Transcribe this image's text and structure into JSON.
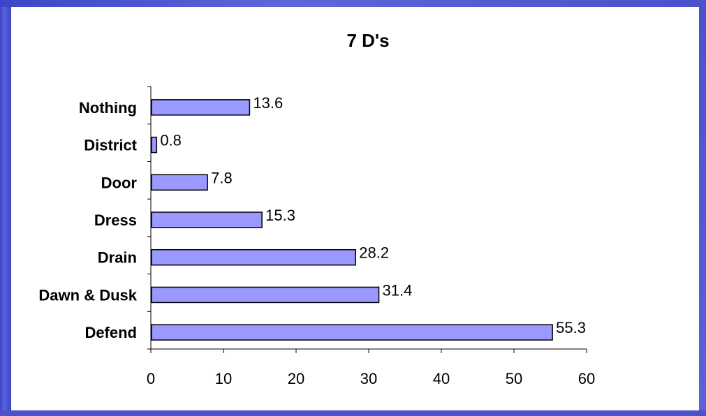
{
  "chart_data": {
    "type": "bar",
    "orientation": "horizontal",
    "title": "7 D's",
    "categories": [
      "Nothing",
      "District",
      "Door",
      "Dress",
      "Drain",
      "Dawn & Dusk",
      "Defend"
    ],
    "values": [
      13.6,
      0.8,
      7.8,
      15.3,
      28.2,
      31.4,
      55.3
    ],
    "xlim": [
      0,
      60
    ],
    "xticks": [
      0,
      10,
      20,
      30,
      40,
      50,
      60
    ],
    "xlabel": "",
    "ylabel": "",
    "grid": false,
    "bar_color": "#9999ff",
    "bar_edge_color": "#000000",
    "show_data_labels": true
  }
}
